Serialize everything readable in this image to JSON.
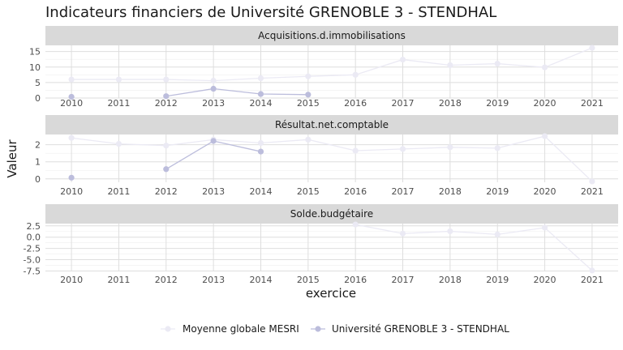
{
  "title": "Indicateurs financiers de Université GRENOBLE 3 - STENDHAL",
  "chart_data": {
    "type": "line",
    "title": "Indicateurs financiers de Université GRENOBLE 3 - STENDHAL",
    "xlabel": "exercice",
    "ylabel": "Valeur",
    "x": [
      2010,
      2011,
      2012,
      2013,
      2014,
      2015,
      2016,
      2017,
      2018,
      2019,
      2020,
      2021
    ],
    "legend_position": "bottom",
    "grid": true,
    "colors": {
      "Moyenne globale MESRI": "#ebeaf4",
      "Université GRENOBLE 3 - STENDHAL": "#bcbddc",
      "strip": "#d9d9d9",
      "grid": "#dedede"
    },
    "panels": [
      {
        "name": "Acquisitions.d.immobilisations",
        "ylim": [
          0,
          17
        ],
        "yticks": [
          0,
          5,
          10,
          15
        ],
        "ytick_labels": [
          "0",
          "5",
          "10",
          "15"
        ],
        "series": [
          {
            "name": "Moyenne globale MESRI",
            "values": [
              6.0,
              6.0,
              6.0,
              5.6,
              6.4,
              7.0,
              7.5,
              12.4,
              10.6,
              11.1,
              9.9,
              16.2
            ]
          },
          {
            "name": "Université GRENOBLE 3 - STENDHAL",
            "values": [
              0.4,
              null,
              0.6,
              3.0,
              1.3,
              1.1,
              null,
              null,
              null,
              null,
              null,
              null
            ]
          }
        ]
      },
      {
        "name": "Résultat.net.comptable",
        "ylim": [
          -0.2,
          2.6
        ],
        "yticks": [
          0,
          1,
          2
        ],
        "ytick_labels": [
          "0",
          "1",
          "2"
        ],
        "series": [
          {
            "name": "Moyenne globale MESRI",
            "values": [
              2.4,
              2.05,
              1.95,
              2.3,
              2.1,
              2.3,
              1.65,
              1.75,
              1.85,
              1.8,
              2.5,
              -0.15
            ]
          },
          {
            "name": "Université GRENOBLE 3 - STENDHAL",
            "values": [
              0.07,
              null,
              0.57,
              2.22,
              1.6,
              null,
              null,
              null,
              null,
              null,
              null,
              null
            ]
          }
        ]
      },
      {
        "name": "Solde.budgétaire",
        "ylim": [
          -7.6,
          3.0
        ],
        "yticks": [
          -7.5,
          -5.0,
          -2.5,
          0.0,
          2.5
        ],
        "ytick_labels": [
          "-7.5",
          "-5.0",
          "-2.5",
          "0.0",
          "2.5"
        ],
        "series": [
          {
            "name": "Moyenne globale MESRI",
            "values": [
              null,
              null,
              null,
              null,
              null,
              null,
              2.8,
              0.8,
              1.3,
              0.6,
              2.1,
              -7.4
            ]
          },
          {
            "name": "Université GRENOBLE 3 - STENDHAL",
            "values": [
              null,
              null,
              null,
              null,
              null,
              null,
              null,
              null,
              null,
              null,
              null,
              null
            ]
          }
        ]
      }
    ]
  },
  "legend": [
    {
      "label": "Moyenne globale MESRI",
      "color": "#ebeaf4"
    },
    {
      "label": "Université GRENOBLE 3 - STENDHAL",
      "color": "#bcbddc"
    }
  ]
}
